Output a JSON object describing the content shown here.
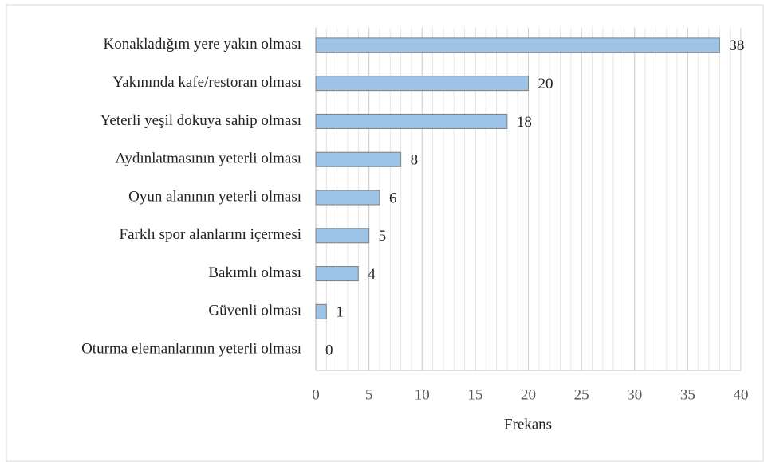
{
  "chart_data": {
    "type": "barh",
    "xlabel": "Frekans",
    "categories": [
      "Konakladığım yere yakın olması",
      "Yakınında kafe/restoran olması",
      "Yeterli yeşil dokuya sahip olması",
      "Aydınlatmasının yeterli olması",
      "Oyun alanının yeterli olması",
      "Farklı spor alanlarını içermesi",
      "Bakımlı olması",
      "Güvenli olması",
      "Oturma elemanlarının yeterli olması"
    ],
    "values": [
      38,
      20,
      18,
      8,
      6,
      5,
      4,
      1,
      0
    ],
    "color": "#9dc3e6",
    "xlim": [
      0,
      40
    ],
    "xticks": [
      0,
      5,
      10,
      15,
      20,
      25,
      30,
      35,
      40
    ],
    "xticks_minor": [
      0,
      1,
      2,
      3,
      4,
      5,
      6,
      7,
      8,
      9,
      10,
      11,
      12,
      13,
      14,
      15,
      16,
      17,
      18,
      19,
      20,
      21,
      22,
      23,
      24,
      25,
      26,
      27,
      28,
      29,
      30,
      31,
      32,
      33,
      34,
      35,
      36,
      37,
      38,
      39,
      40
    ],
    "grid": true
  }
}
